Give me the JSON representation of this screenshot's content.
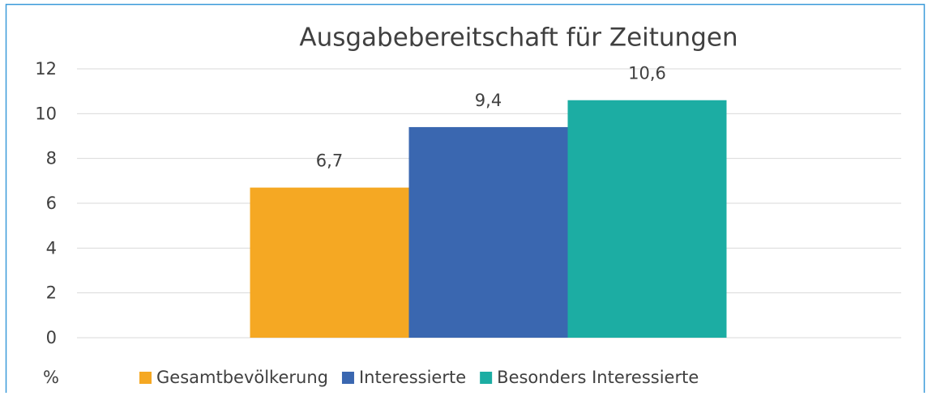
{
  "chart_data": {
    "type": "bar",
    "title": "Ausgabebereitschaft für Zeitungen",
    "y_label": "%",
    "categories": [
      null
    ],
    "series": [
      {
        "name": "Gesamtbevölkerung",
        "color": "#f5a823",
        "values": [
          6.7
        ],
        "value_labels": [
          "6,7"
        ]
      },
      {
        "name": "Interessierte",
        "color": "#3a67b0",
        "values": [
          9.4
        ],
        "value_labels": [
          "9,4"
        ]
      },
      {
        "name": "Besonders Interessierte",
        "color": "#1cada3",
        "values": [
          10.6
        ],
        "value_labels": [
          "10,6"
        ]
      }
    ],
    "ylim": [
      0,
      12
    ],
    "yticks": [
      0,
      2,
      4,
      6,
      8,
      10,
      12
    ],
    "grid": true,
    "legend": "bottom"
  }
}
